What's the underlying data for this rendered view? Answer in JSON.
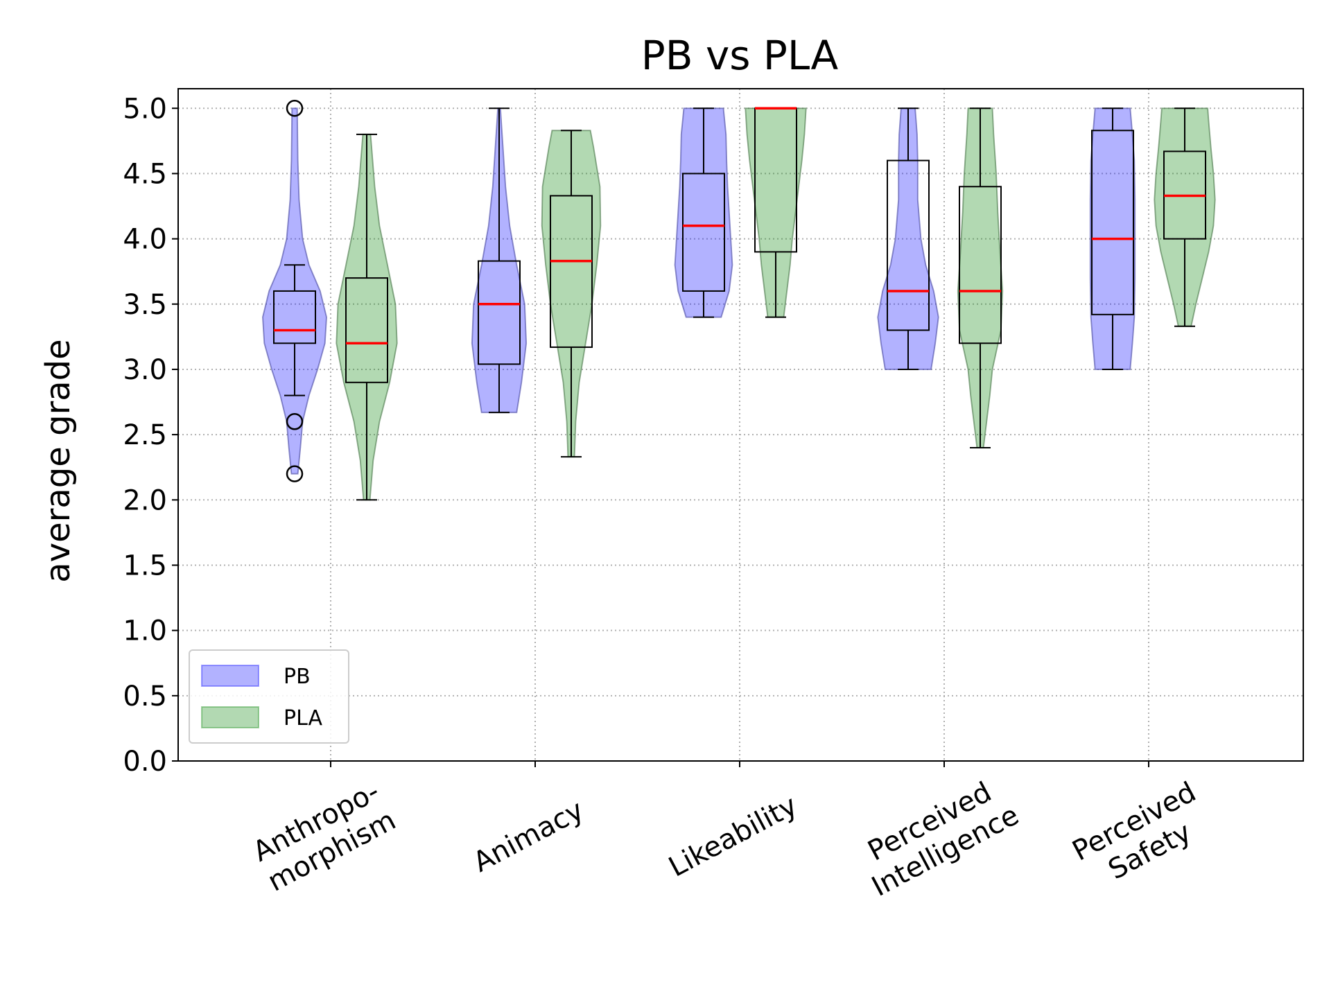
{
  "chart_data": {
    "type": "violin",
    "title": "PB vs PLA",
    "xlabel": "",
    "ylabel": "average grade",
    "ylim": [
      0,
      5.15
    ],
    "yticks": [
      "0.0",
      "0.5",
      "1.0",
      "1.5",
      "2.0",
      "2.5",
      "3.0",
      "3.5",
      "4.0",
      "4.5",
      "5.0"
    ],
    "grid": true,
    "legend_position": "lower-left",
    "categories": [
      [
        "Anthropo-",
        "morphism"
      ],
      [
        "Animacy"
      ],
      [
        "Likeability"
      ],
      [
        "Perceived",
        "Intelligence"
      ],
      [
        "Perceived",
        "Safety"
      ]
    ],
    "series": [
      {
        "name": "PB",
        "color": "#0000ff",
        "stats": [
          {
            "min": 2.8,
            "q1": 3.2,
            "median": 3.3,
            "q3": 3.6,
            "max": 3.8,
            "outliers": [
              5.0,
              2.6,
              2.2
            ],
            "violin_range": [
              2.2,
              5.0
            ],
            "density": [
              [
                2.2,
                0.1
              ],
              [
                2.4,
                0.18
              ],
              [
                2.6,
                0.25
              ],
              [
                2.8,
                0.45
              ],
              [
                3.0,
                0.72
              ],
              [
                3.2,
                0.95
              ],
              [
                3.4,
                1.0
              ],
              [
                3.6,
                0.8
              ],
              [
                3.8,
                0.45
              ],
              [
                4.0,
                0.25
              ],
              [
                4.3,
                0.14
              ],
              [
                4.6,
                0.1
              ],
              [
                5.0,
                0.08
              ]
            ]
          },
          {
            "min": 2.67,
            "q1": 3.04,
            "median": 3.5,
            "q3": 3.83,
            "max": 5.0,
            "outliers": [],
            "violin_range": [
              2.67,
              5.0
            ],
            "density": [
              [
                2.67,
                0.55
              ],
              [
                2.9,
                0.7
              ],
              [
                3.2,
                0.85
              ],
              [
                3.5,
                0.8
              ],
              [
                3.8,
                0.55
              ],
              [
                4.1,
                0.33
              ],
              [
                4.4,
                0.2
              ],
              [
                4.7,
                0.12
              ],
              [
                5.0,
                0.04
              ]
            ]
          },
          {
            "min": 3.4,
            "q1": 3.6,
            "median": 4.1,
            "q3": 4.5,
            "max": 5.0,
            "outliers": [],
            "violin_range": [
              3.4,
              5.0
            ],
            "density": [
              [
                3.4,
                0.55
              ],
              [
                3.6,
                0.8
              ],
              [
                3.8,
                0.9
              ],
              [
                4.0,
                0.85
              ],
              [
                4.2,
                0.8
              ],
              [
                4.4,
                0.75
              ],
              [
                4.6,
                0.72
              ],
              [
                4.8,
                0.7
              ],
              [
                5.0,
                0.62
              ]
            ]
          },
          {
            "min": 3.0,
            "q1": 3.3,
            "median": 3.6,
            "q3": 4.6,
            "max": 5.0,
            "outliers": [],
            "violin_range": [
              3.0,
              5.0
            ],
            "density": [
              [
                3.0,
                0.72
              ],
              [
                3.2,
                0.85
              ],
              [
                3.4,
                0.95
              ],
              [
                3.6,
                0.8
              ],
              [
                3.8,
                0.55
              ],
              [
                4.0,
                0.4
              ],
              [
                4.3,
                0.3
              ],
              [
                4.6,
                0.3
              ],
              [
                4.8,
                0.28
              ],
              [
                5.0,
                0.22
              ]
            ]
          },
          {
            "min": 3.0,
            "q1": 3.42,
            "median": 4.0,
            "q3": 4.83,
            "max": 5.0,
            "outliers": [],
            "violin_range": [
              3.0,
              5.0
            ],
            "density": [
              [
                3.0,
                0.55
              ],
              [
                3.2,
                0.62
              ],
              [
                3.4,
                0.68
              ],
              [
                3.7,
                0.7
              ],
              [
                4.0,
                0.7
              ],
              [
                4.3,
                0.7
              ],
              [
                4.6,
                0.68
              ],
              [
                4.8,
                0.62
              ],
              [
                5.0,
                0.55
              ]
            ]
          }
        ]
      },
      {
        "name": "PLA",
        "color": "#008000",
        "stats": [
          {
            "min": 2.0,
            "q1": 2.9,
            "median": 3.2,
            "q3": 3.7,
            "max": 4.8,
            "outliers": [],
            "violin_range": [
              2.0,
              4.8
            ],
            "density": [
              [
                2.0,
                0.1
              ],
              [
                2.3,
                0.2
              ],
              [
                2.6,
                0.4
              ],
              [
                2.9,
                0.72
              ],
              [
                3.2,
                0.95
              ],
              [
                3.5,
                0.9
              ],
              [
                3.8,
                0.65
              ],
              [
                4.1,
                0.4
              ],
              [
                4.4,
                0.25
              ],
              [
                4.8,
                0.12
              ]
            ]
          },
          {
            "min": 2.33,
            "q1": 3.17,
            "median": 3.83,
            "q3": 4.33,
            "max": 4.83,
            "outliers": [],
            "violin_range": [
              2.33,
              4.83
            ],
            "density": [
              [
                2.33,
                0.1
              ],
              [
                2.6,
                0.14
              ],
              [
                2.9,
                0.25
              ],
              [
                3.2,
                0.45
              ],
              [
                3.5,
                0.65
              ],
              [
                3.8,
                0.8
              ],
              [
                4.1,
                0.92
              ],
              [
                4.4,
                0.9
              ],
              [
                4.7,
                0.7
              ],
              [
                4.83,
                0.6
              ]
            ]
          },
          {
            "min": 3.4,
            "q1": 3.9,
            "median": 5.0,
            "q3": 5.0,
            "max": 5.0,
            "outliers": [],
            "violin_range": [
              3.4,
              5.0
            ],
            "density": [
              [
                3.4,
                0.25
              ],
              [
                3.6,
                0.35
              ],
              [
                3.8,
                0.45
              ],
              [
                4.0,
                0.52
              ],
              [
                4.2,
                0.62
              ],
              [
                4.4,
                0.72
              ],
              [
                4.6,
                0.82
              ],
              [
                4.8,
                0.9
              ],
              [
                5.0,
                0.95
              ]
            ]
          },
          {
            "min": 2.4,
            "q1": 3.2,
            "median": 3.6,
            "q3": 4.4,
            "max": 5.0,
            "outliers": [],
            "violin_range": [
              2.4,
              5.0
            ],
            "density": [
              [
                2.4,
                0.1
              ],
              [
                2.6,
                0.2
              ],
              [
                2.8,
                0.3
              ],
              [
                3.0,
                0.38
              ],
              [
                3.3,
                0.65
              ],
              [
                3.6,
                0.7
              ],
              [
                3.9,
                0.62
              ],
              [
                4.2,
                0.55
              ],
              [
                4.5,
                0.5
              ],
              [
                4.8,
                0.42
              ],
              [
                5.0,
                0.38
              ]
            ]
          },
          {
            "min": 3.33,
            "q1": 4.0,
            "median": 4.33,
            "q3": 4.67,
            "max": 5.0,
            "outliers": [],
            "violin_range": [
              3.33,
              5.0
            ],
            "density": [
              [
                3.33,
                0.2
              ],
              [
                3.5,
                0.35
              ],
              [
                3.7,
                0.55
              ],
              [
                3.9,
                0.75
              ],
              [
                4.1,
                0.9
              ],
              [
                4.3,
                0.95
              ],
              [
                4.5,
                0.9
              ],
              [
                4.7,
                0.82
              ],
              [
                4.9,
                0.75
              ],
              [
                5.0,
                0.72
              ]
            ]
          }
        ]
      }
    ]
  }
}
